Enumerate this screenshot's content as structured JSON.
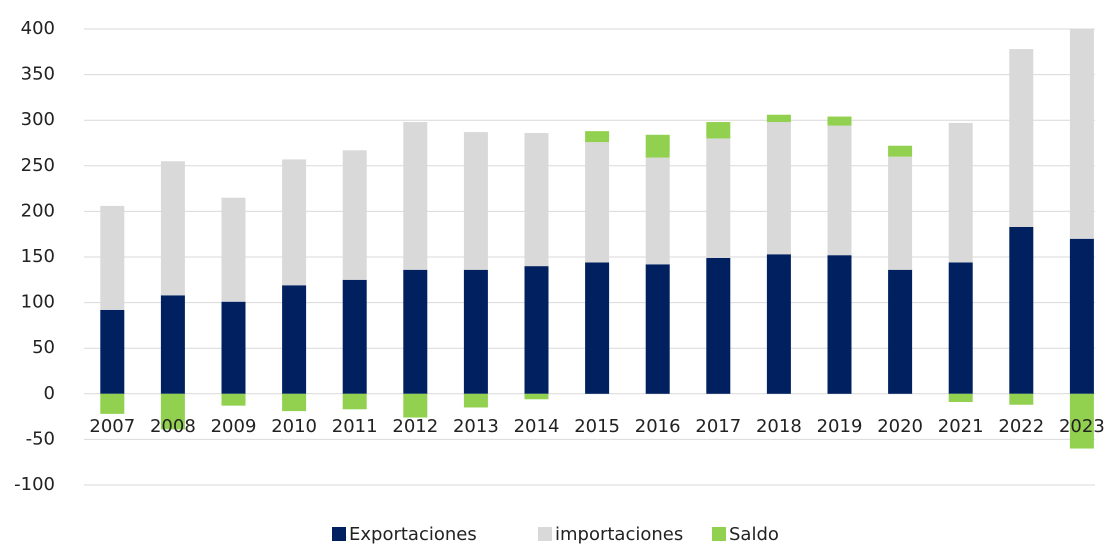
{
  "chart_data": {
    "type": "bar",
    "stacked": true,
    "categories": [
      "2007",
      "2008",
      "2009",
      "2010",
      "2011",
      "2012",
      "2013",
      "2014",
      "2015",
      "2016",
      "2017",
      "2018",
      "2019",
      "2020",
      "2021",
      "2022",
      "2023"
    ],
    "series": [
      {
        "name": "Exportaciones",
        "color": "#002060",
        "values": [
          92,
          108,
          101,
          119,
          125,
          136,
          136,
          140,
          144,
          142,
          149,
          153,
          152,
          136,
          144,
          183,
          170
        ]
      },
      {
        "name": "importaciones",
        "color": "#d9d9d9",
        "values": [
          114,
          147,
          114,
          138,
          142,
          162,
          151,
          146,
          132,
          117,
          131,
          145,
          142,
          124,
          153,
          195,
          230
        ]
      },
      {
        "name": "Saldo",
        "color": "#92d050",
        "values": [
          -22,
          -39,
          -13,
          -19,
          -17,
          -26,
          -15,
          -6,
          12,
          25,
          18,
          8,
          10,
          12,
          -9,
          -12,
          -60
        ]
      }
    ],
    "ylim": [
      -100,
      400
    ],
    "yticks": [
      -100,
      -50,
      0,
      50,
      100,
      150,
      200,
      250,
      300,
      350,
      400
    ],
    "grid": true,
    "legend": "bottom"
  }
}
